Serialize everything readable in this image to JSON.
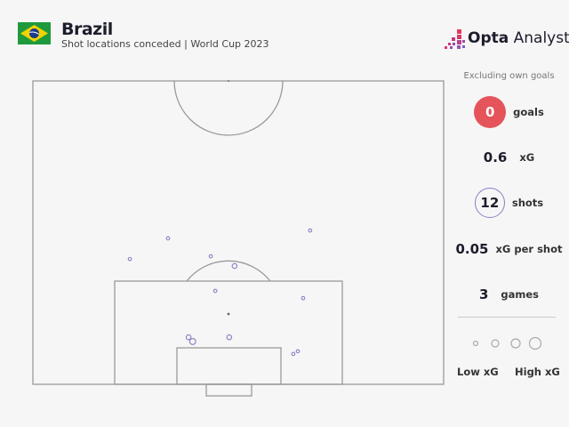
{
  "header": {
    "title": "Brazil",
    "subtitle": "Shot locations conceded | World Cup 2023",
    "flag_icon": "brazil-flag-icon",
    "logo_text_bold": "Opta",
    "logo_text": "Analyst"
  },
  "panel": {
    "note": "Excluding own goals",
    "goals": {
      "value": "0",
      "label": "goals"
    },
    "xg": {
      "value": "0.6",
      "label": "xG"
    },
    "shots": {
      "value": "12",
      "label": "shots"
    },
    "xg_per_shot": {
      "value": "0.05",
      "label": "xG per shot"
    },
    "games": {
      "value": "3",
      "label": "games"
    },
    "legend_low": "Low xG",
    "legend_high": "High xG"
  },
  "colors": {
    "goal": "#e4545a",
    "shot": "#8e7cc3",
    "pitch_line": "#9a9a9a",
    "background": "#f6f6f7"
  },
  "chart_data": {
    "type": "scatter",
    "title": "Shot locations conceded | World Cup 2023",
    "description_units": "pitch coordinates: x across width 0-100 (left to right), y distance from goal line 0-100 of half pitch",
    "shots": [
      {
        "x": 23.6,
        "y": 41.3,
        "xg": "low"
      },
      {
        "x": 32.9,
        "y": 48.1,
        "xg": "low"
      },
      {
        "x": 43.3,
        "y": 42.2,
        "xg": "low"
      },
      {
        "x": 49.1,
        "y": 39.0,
        "xg": "mid"
      },
      {
        "x": 67.5,
        "y": 50.7,
        "xg": "low"
      },
      {
        "x": 44.4,
        "y": 30.8,
        "xg": "low"
      },
      {
        "x": 65.8,
        "y": 28.4,
        "xg": "low"
      },
      {
        "x": 37.9,
        "y": 15.5,
        "xg": "mid"
      },
      {
        "x": 38.9,
        "y": 14.1,
        "xg": "high"
      },
      {
        "x": 47.8,
        "y": 15.5,
        "xg": "mid"
      },
      {
        "x": 63.4,
        "y": 10.0,
        "xg": "low"
      },
      {
        "x": 64.5,
        "y": 10.9,
        "xg": "low"
      }
    ],
    "goals": []
  }
}
